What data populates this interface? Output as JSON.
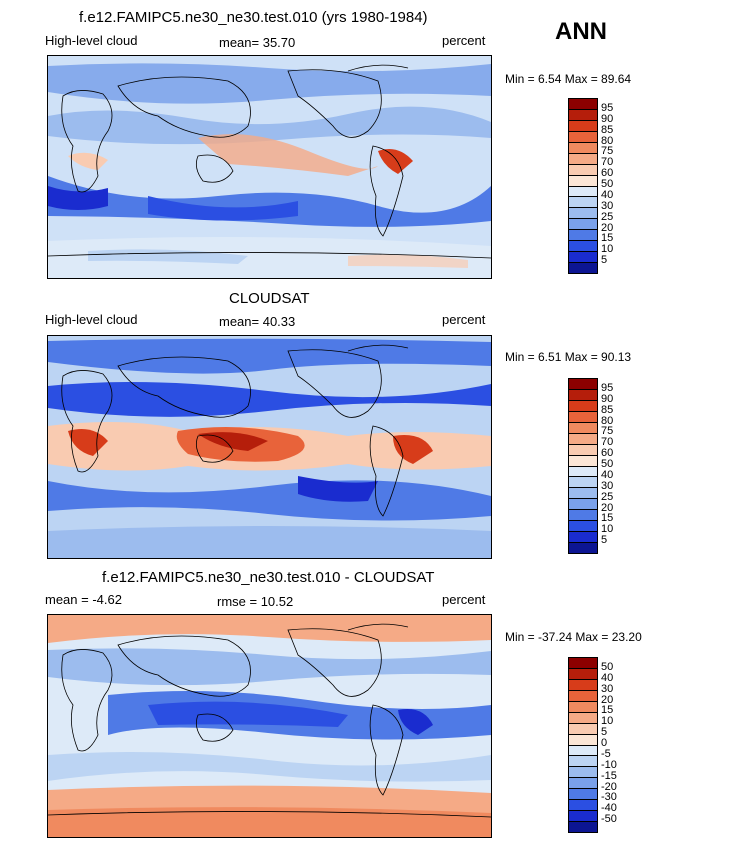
{
  "ann_label": "ANN",
  "units_label": "percent",
  "panels": [
    {
      "title": "f.e12.FAMIPC5.ne30_ne30.test.010 (yrs 1980-1984)",
      "left_label": "High-level cloud",
      "center_label": "mean=  35.70",
      "minmax": "Min =    6.54  Max =   89.64"
    },
    {
      "title": "CLOUDSAT",
      "left_label": "High-level cloud",
      "center_label": "mean=  40.33",
      "minmax": "Min =    6.51  Max =   90.13"
    },
    {
      "title": "f.e12.FAMIPC5.ne30_ne30.test.010 - CLOUDSAT",
      "left_label": "mean =   -4.62",
      "center_label": "rmse =   10.52",
      "minmax": "Min = -37.24  Max =   23.20"
    }
  ],
  "colorbar_abs": {
    "labels": [
      "95",
      "90",
      "85",
      "80",
      "75",
      "70",
      "60",
      "50",
      "40",
      "30",
      "25",
      "20",
      "15",
      "10",
      "5"
    ],
    "colors": [
      "#8c0000",
      "#b51e0b",
      "#d73c1a",
      "#e8633a",
      "#f08a5f",
      "#f5aa86",
      "#f9cbb1",
      "#fbe6d6",
      "#ddeaf8",
      "#bcd4f3",
      "#9cbcee",
      "#7aa1ea",
      "#4f7ae6",
      "#2b4fe2",
      "#1a2ccf",
      "#0c1592"
    ]
  },
  "colorbar_diff": {
    "labels": [
      "50",
      "40",
      "30",
      "20",
      "15",
      "10",
      "5",
      "0",
      "-5",
      "-10",
      "-15",
      "-20",
      "-30",
      "-40",
      "-50"
    ],
    "colors": [
      "#8c0000",
      "#b51e0b",
      "#d73c1a",
      "#e8633a",
      "#f08a5f",
      "#f5aa86",
      "#f9cbb1",
      "#fbe6d6",
      "#ddeaf8",
      "#bcd4f3",
      "#9cbcee",
      "#7aa1ea",
      "#4f7ae6",
      "#2b4fe2",
      "#1a2ccf",
      "#0c1592"
    ]
  }
}
